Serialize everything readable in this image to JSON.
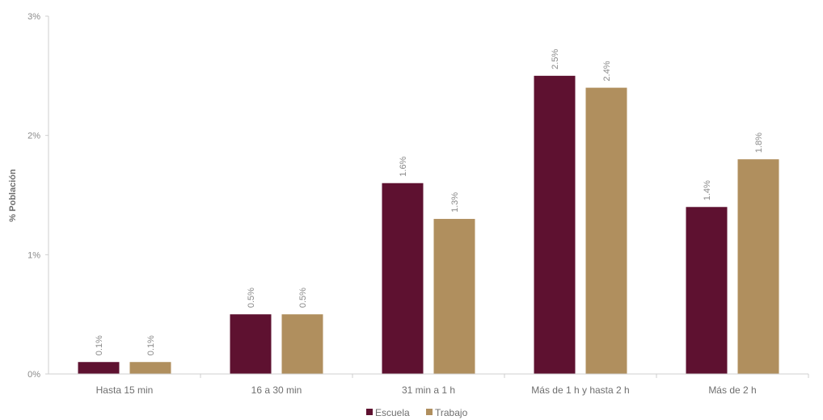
{
  "chart_data": {
    "type": "bar",
    "title": "",
    "xlabel": "",
    "ylabel": "% Población",
    "ylim": [
      0,
      3
    ],
    "yticks": [
      {
        "value": 0,
        "label": "0%"
      },
      {
        "value": 1,
        "label": "1%"
      },
      {
        "value": 2,
        "label": "2%"
      },
      {
        "value": 3,
        "label": "3%"
      }
    ],
    "categories": [
      "Hasta 15 min",
      "16 a 30 min",
      "31 min a 1 h",
      "Más de 1 h y hasta 2 h",
      "Más de 2 h"
    ],
    "series": [
      {
        "name": "Escuela",
        "color": "#5e1130",
        "values": [
          0.1,
          0.5,
          1.6,
          2.5,
          1.4
        ],
        "labels": [
          "0.1%",
          "0.5%",
          "1.6%",
          "2.5%",
          "1.4%"
        ]
      },
      {
        "name": "Trabajo",
        "color": "#b08f5e",
        "values": [
          0.1,
          0.5,
          1.3,
          2.4,
          1.8
        ],
        "labels": [
          "0.1%",
          "0.5%",
          "1.3%",
          "2.4%",
          "1.8%"
        ]
      }
    ],
    "grid": false,
    "legend_position": "bottom-center",
    "data_labels": "rotated vertical above bars"
  }
}
